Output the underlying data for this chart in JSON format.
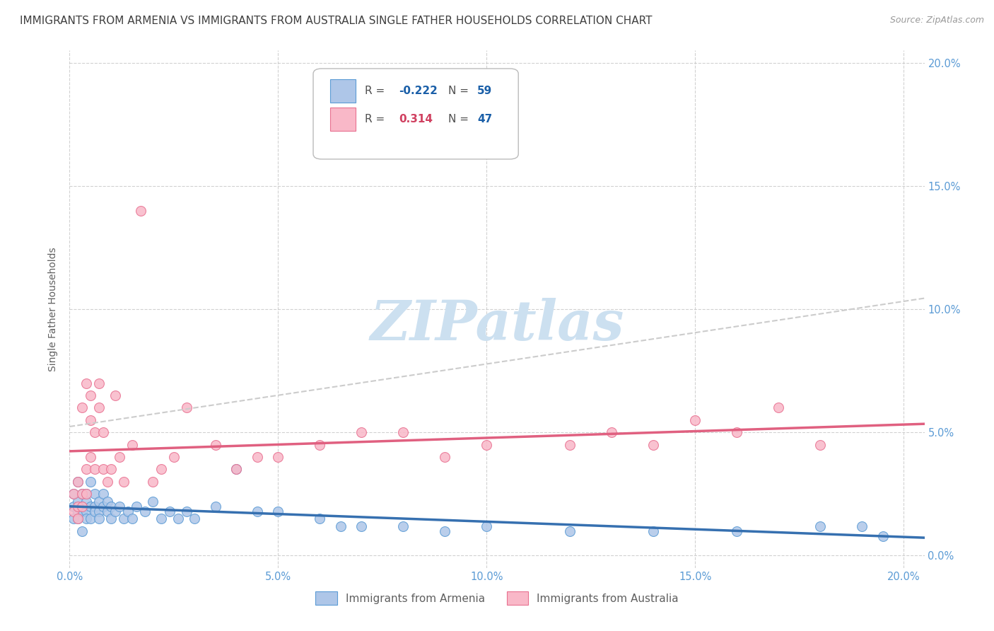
{
  "title": "IMMIGRANTS FROM ARMENIA VS IMMIGRANTS FROM AUSTRALIA SINGLE FATHER HOUSEHOLDS CORRELATION CHART",
  "source": "Source: ZipAtlas.com",
  "ylabel": "Single Father Households",
  "xlim": [
    0.0,
    0.205
  ],
  "ylim": [
    -0.005,
    0.205
  ],
  "xticks": [
    0.0,
    0.05,
    0.1,
    0.15,
    0.2
  ],
  "xtick_labels": [
    "0.0%",
    "5.0%",
    "10.0%",
    "15.0%",
    "20.0%"
  ],
  "yticks": [
    0.0,
    0.05,
    0.1,
    0.15,
    0.2
  ],
  "ytick_labels": [
    "0.0%",
    "5.0%",
    "10.0%",
    "15.0%",
    "20.0%"
  ],
  "armenia_color": "#aec6e8",
  "australia_color": "#f9b8c8",
  "armenia_edge_color": "#5b9bd5",
  "australia_edge_color": "#e87090",
  "armenia_line_color": "#3670b0",
  "australia_line_color": "#e06080",
  "australia_dash_color": "#cccccc",
  "background_color": "#ffffff",
  "grid_color": "#cccccc",
  "title_color": "#404040",
  "axis_label_color": "#606060",
  "tick_label_color": "#5b9bd5",
  "legend_R_color_armenia": "#1a5fa8",
  "legend_R_color_australia": "#d04060",
  "legend_N_color": "#1a5fa8",
  "watermark_color": "#cce0f0",
  "watermark": "ZIPatlas",
  "armenia_R": -0.222,
  "armenia_N": 59,
  "australia_R": 0.314,
  "australia_N": 47,
  "armenia_x": [
    0.001,
    0.001,
    0.001,
    0.002,
    0.002,
    0.002,
    0.002,
    0.003,
    0.003,
    0.003,
    0.003,
    0.004,
    0.004,
    0.004,
    0.004,
    0.005,
    0.005,
    0.005,
    0.006,
    0.006,
    0.006,
    0.007,
    0.007,
    0.007,
    0.008,
    0.008,
    0.009,
    0.009,
    0.01,
    0.01,
    0.011,
    0.012,
    0.013,
    0.014,
    0.015,
    0.016,
    0.018,
    0.02,
    0.022,
    0.024,
    0.026,
    0.028,
    0.03,
    0.035,
    0.04,
    0.045,
    0.05,
    0.06,
    0.065,
    0.07,
    0.08,
    0.09,
    0.1,
    0.12,
    0.14,
    0.16,
    0.18,
    0.19,
    0.195
  ],
  "armenia_y": [
    0.02,
    0.015,
    0.025,
    0.022,
    0.018,
    0.03,
    0.015,
    0.025,
    0.02,
    0.018,
    0.01,
    0.025,
    0.018,
    0.022,
    0.015,
    0.03,
    0.02,
    0.015,
    0.025,
    0.02,
    0.018,
    0.022,
    0.018,
    0.015,
    0.02,
    0.025,
    0.018,
    0.022,
    0.015,
    0.02,
    0.018,
    0.02,
    0.015,
    0.018,
    0.015,
    0.02,
    0.018,
    0.022,
    0.015,
    0.018,
    0.015,
    0.018,
    0.015,
    0.02,
    0.035,
    0.018,
    0.018,
    0.015,
    0.012,
    0.012,
    0.012,
    0.01,
    0.012,
    0.01,
    0.01,
    0.01,
    0.012,
    0.012,
    0.008
  ],
  "australia_x": [
    0.001,
    0.001,
    0.002,
    0.002,
    0.002,
    0.003,
    0.003,
    0.003,
    0.004,
    0.004,
    0.004,
    0.005,
    0.005,
    0.005,
    0.006,
    0.006,
    0.007,
    0.007,
    0.008,
    0.008,
    0.009,
    0.01,
    0.011,
    0.012,
    0.013,
    0.015,
    0.017,
    0.02,
    0.022,
    0.025,
    0.028,
    0.035,
    0.04,
    0.045,
    0.05,
    0.06,
    0.07,
    0.08,
    0.09,
    0.1,
    0.12,
    0.13,
    0.14,
    0.15,
    0.16,
    0.17,
    0.18
  ],
  "australia_y": [
    0.018,
    0.025,
    0.02,
    0.03,
    0.015,
    0.025,
    0.06,
    0.02,
    0.035,
    0.025,
    0.07,
    0.04,
    0.055,
    0.065,
    0.05,
    0.035,
    0.06,
    0.07,
    0.035,
    0.05,
    0.03,
    0.035,
    0.065,
    0.04,
    0.03,
    0.045,
    0.14,
    0.03,
    0.035,
    0.04,
    0.06,
    0.045,
    0.035,
    0.04,
    0.04,
    0.045,
    0.05,
    0.05,
    0.04,
    0.045,
    0.045,
    0.05,
    0.045,
    0.055,
    0.05,
    0.06,
    0.045
  ],
  "title_fontsize": 11,
  "axis_label_fontsize": 10,
  "tick_fontsize": 10.5,
  "legend_fontsize": 11
}
